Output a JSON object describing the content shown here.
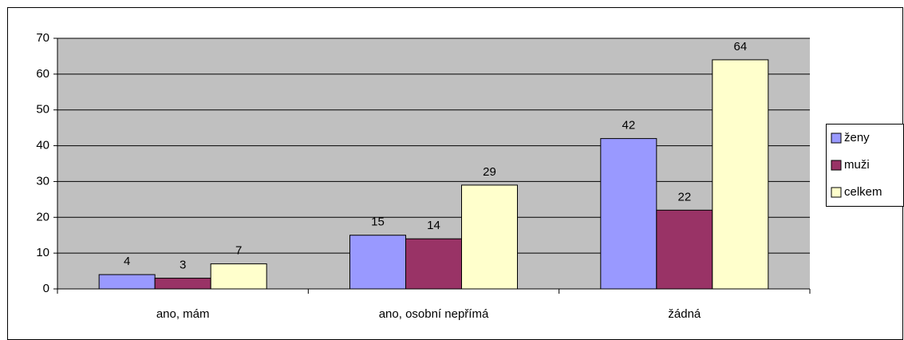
{
  "chart_data": {
    "type": "bar",
    "categories": [
      "ano, mám",
      "ano, osobní nepřímá",
      "žádná"
    ],
    "series": [
      {
        "name": "ženy",
        "color": "#9999ff",
        "values": [
          4,
          15,
          42
        ]
      },
      {
        "name": "muži",
        "color": "#993366",
        "values": [
          3,
          14,
          22
        ]
      },
      {
        "name": "celkem",
        "color": "#ffffcc",
        "values": [
          7,
          29,
          64
        ]
      }
    ],
    "ylim": [
      0,
      70
    ],
    "yticks": [
      0,
      10,
      20,
      30,
      40,
      50,
      60,
      70
    ],
    "grid": true,
    "legend": "right"
  }
}
